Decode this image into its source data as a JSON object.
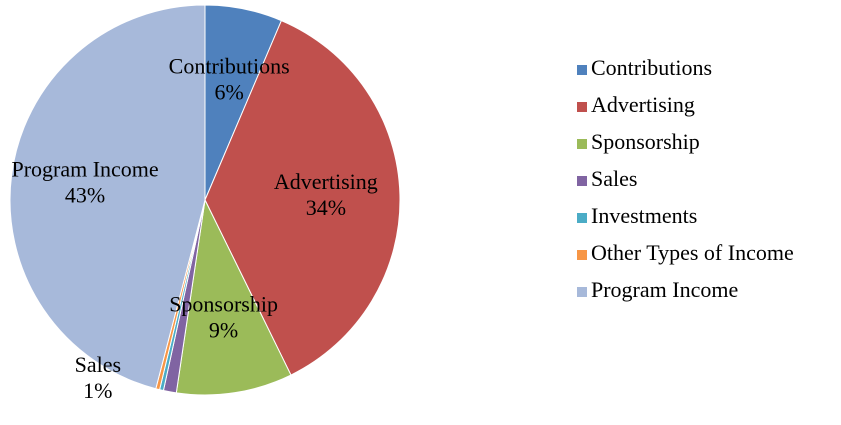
{
  "chart_data": {
    "type": "pie",
    "categories": [
      "Contributions",
      "Advertising",
      "Sponsorship",
      "Sales",
      "Investments",
      "Other Types of Income",
      "Program Income"
    ],
    "values": [
      6,
      34,
      9,
      1,
      0.3,
      0.3,
      43
    ],
    "value_labels": [
      "6%",
      "34%",
      "9%",
      "1%",
      null,
      null,
      "43%"
    ],
    "colors": [
      "#4f81bd",
      "#c0504d",
      "#9bbb59",
      "#8064a2",
      "#4bacc6",
      "#f79646",
      "#a7b9da"
    ],
    "legend": "right"
  }
}
